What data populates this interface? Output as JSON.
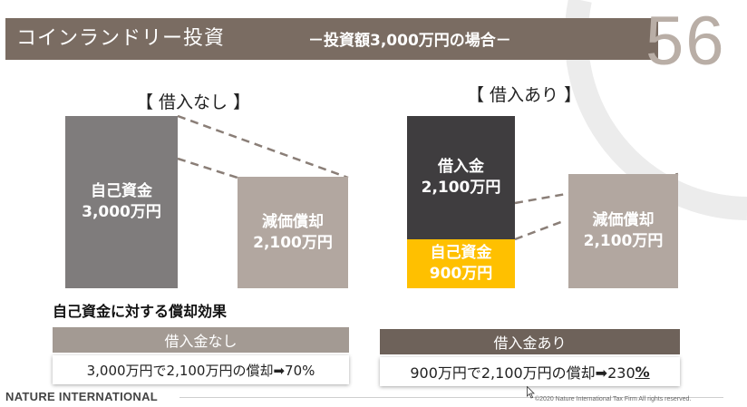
{
  "header": {
    "title": "コインランドリー投資",
    "subtitle": "－投資額3,000万円の場合－",
    "slide_number": "56"
  },
  "left_scenario": {
    "label": "【 借入なし 】",
    "own_funds_label": "自己資金",
    "own_funds_amount": "3,000万円",
    "depreciation_label": "減価償却",
    "depreciation_amount": "2,100万円"
  },
  "right_scenario": {
    "label": "【 借入あり 】",
    "loan_label": "借入金",
    "loan_amount": "2,100万円",
    "own_funds_label": "自己資金",
    "own_funds_amount": "900万円",
    "depreciation_label": "減価償却",
    "depreciation_amount": "2,100万円"
  },
  "effect": {
    "heading": "自己資金に対する償却効果",
    "no_loan_head": "借入金なし",
    "no_loan_text": "3,000万円で2,100万円の償却➡70%",
    "with_loan_head": "借入金あり",
    "with_loan_text_main": "900万円で2,100万円の償却➡230",
    "with_loan_text_pct": "%"
  },
  "footer": {
    "logo": "NATURE INTERNATIONAL",
    "copyright": "©2020 Nature International Tax Firm All rights reserved."
  },
  "colors": {
    "header_bar": "#7a6c62",
    "own_funds_left": "#7f7c7c",
    "depreciation": "#b2a7a0",
    "loan": "#3f3d3f",
    "own_funds_right": "#ffc000",
    "box_head_left": "#a39a93",
    "box_head_right": "#6e625a"
  }
}
